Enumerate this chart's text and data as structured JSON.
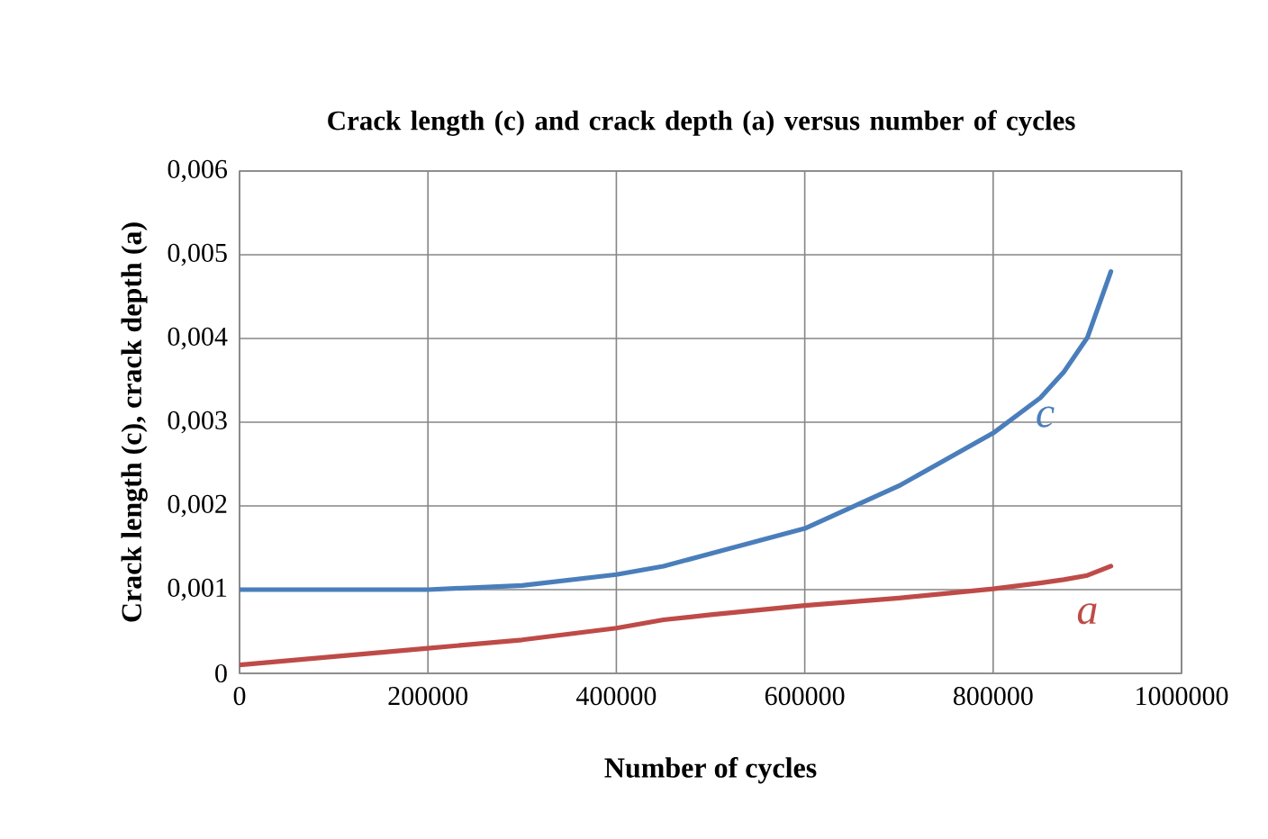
{
  "chart_data": {
    "type": "line",
    "title": "Crack length (c)  and crack depth (a) versus number of cycles",
    "xlabel": "Number  of cycles",
    "ylabel": "Crack length (c), crack depth (a)",
    "x": [
      0,
      100000,
      200000,
      300000,
      400000,
      450000,
      500000,
      600000,
      700000,
      800000,
      850000,
      875000,
      900000,
      925000
    ],
    "series": [
      {
        "name": "c",
        "color": "#4a7ebb",
        "values": [
          0.001,
          0.001,
          0.001,
          0.00105,
          0.00118,
          0.00128,
          0.00143,
          0.00173,
          0.00224,
          0.00287,
          0.00329,
          0.0036,
          0.00401,
          0.0048
        ]
      },
      {
        "name": "a",
        "color": "#be4b48",
        "values": [
          0.0001,
          0.0002,
          0.0003,
          0.0004,
          0.00054,
          0.00064,
          0.0007,
          0.00081,
          0.0009,
          0.00101,
          0.00108,
          0.00112,
          0.00117,
          0.00128
        ]
      }
    ],
    "xlim": [
      0,
      1000000
    ],
    "ylim": [
      0,
      0.006
    ],
    "xticks": [
      0,
      200000,
      400000,
      600000,
      800000,
      1000000
    ],
    "yticks": [
      0,
      {
        "value": 0.001,
        "label": "0,001"
      },
      {
        "value": 0.002,
        "label": "0,002"
      },
      {
        "value": 0.003,
        "label": "0,003"
      },
      {
        "value": 0.004,
        "label": "0,004"
      },
      {
        "value": 0.005,
        "label": "0,005"
      },
      {
        "value": 0.006,
        "label": "0,006"
      }
    ],
    "grid": true
  }
}
